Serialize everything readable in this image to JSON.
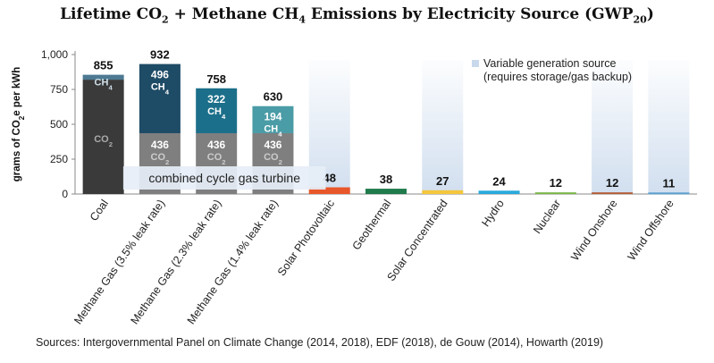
{
  "title": {
    "main": "Lifetime CO",
    "sub1": "2",
    "mid": " + Methane CH",
    "sub2": "4",
    "end": " Emissions by Electricity Source (GWP",
    "sub3": "20",
    "close": ")"
  },
  "sources": "Sources: Intergovernmental Panel on Climate Change (2014, 2018), EDF (2018), de Gouw (2014), Howarth (2019)",
  "colors": {
    "co2_coal": "#3a3a3a",
    "co2_gas": "#7f7f7f",
    "ch4_coal": "#4d7a92",
    "ch4_35": "#1e4b66",
    "ch4_23": "#1c6f8a",
    "ch4_14": "#4a9ca6",
    "solar_pv": "#e8572a",
    "geothermal": "#1f7a4c",
    "solar_conc": "#f4c63d",
    "hydro": "#2aa9dc",
    "nuclear": "#7ab648",
    "wind_on": "#b5603a",
    "wind_off": "#5aa0d0",
    "variable_band": "#c9d9ec"
  },
  "chart_data": {
    "type": "bar",
    "stacked": true,
    "ylabel": "grams of CO",
    "ylabel_sub": "2",
    "ylabel_rest": "e per kWh",
    "ylim": [
      0,
      1000
    ],
    "yticks": [
      0,
      250,
      500,
      750,
      1000
    ],
    "ytick_labels": [
      "0",
      "250",
      "500",
      "750",
      "1,000"
    ],
    "categories": [
      "Coal",
      "Methane Gas (3.5% leak rate)",
      "Methane Gas (2.3% leak rate)",
      "Methane Gas (1.4% leak rate)",
      "Solar Photovoltaic",
      "Geothermal",
      "Solar Concentrated",
      "Hydro",
      "Nuclear",
      "Wind Onshore",
      "Wind Offshore"
    ],
    "co2": [
      820,
      436,
      436,
      436,
      48,
      38,
      27,
      24,
      12,
      12,
      11
    ],
    "ch4": [
      35,
      496,
      322,
      194,
      0,
      0,
      0,
      0,
      0,
      0,
      0
    ],
    "totals": [
      855,
      932,
      758,
      630,
      48,
      38,
      27,
      24,
      12,
      12,
      11
    ],
    "total_labels": [
      "855",
      "932",
      "758",
      "630",
      "48",
      "38",
      "27",
      "24",
      "12",
      "12",
      "11"
    ],
    "ch4_value_labels": [
      "",
      "496",
      "322",
      "194",
      "",
      "",
      "",
      "",
      "",
      "",
      ""
    ],
    "co2_value_labels": [
      "",
      "436",
      "436",
      "436",
      "",
      "",
      "",
      "",
      "",
      "",
      ""
    ],
    "variable_source": [
      false,
      false,
      false,
      false,
      true,
      false,
      true,
      false,
      false,
      true,
      true
    ],
    "co2_label": "CO",
    "co2_label_sub": "2",
    "ch4_label": "CH",
    "ch4_label_sub": "4",
    "ccgt_label": "combined cycle gas turbine",
    "legend": {
      "text_line1": "Variable generation source",
      "text_line2": "(requires storage/gas backup)",
      "position": "top-right"
    }
  }
}
